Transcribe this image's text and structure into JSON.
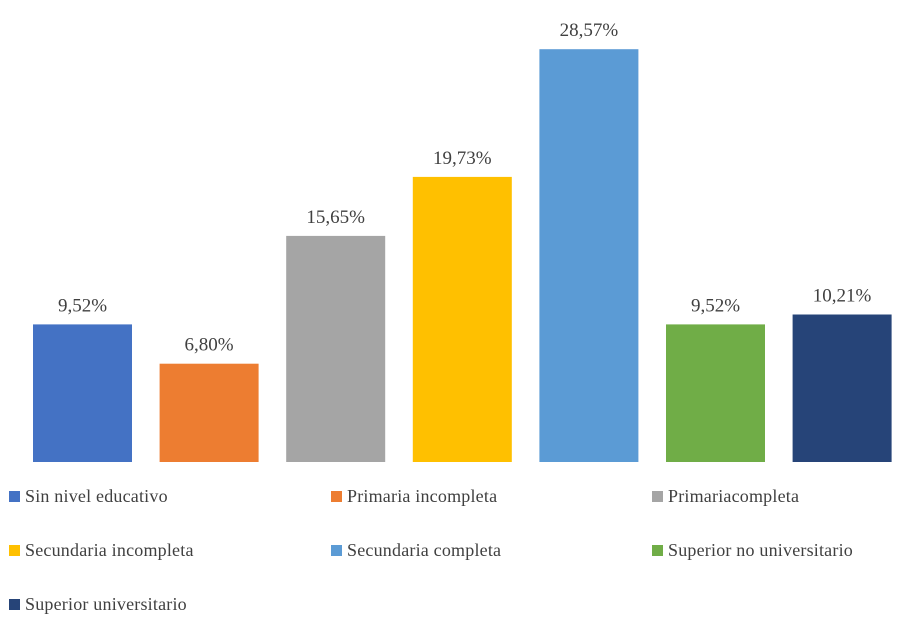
{
  "chart_data": {
    "type": "bar",
    "title": "",
    "xlabel": "",
    "ylabel": "",
    "ylim": [
      0,
      30
    ],
    "grid": false,
    "legend_position": "bottom",
    "categories": [
      "Sin nivel educativo",
      "Primaria incompleta",
      "Primariacompleta",
      "Secundaria incompleta",
      "Secundaria completa",
      "Superior no universitario",
      "Superior universitario"
    ],
    "values": [
      9.52,
      6.8,
      15.65,
      19.73,
      28.57,
      9.52,
      10.21
    ],
    "data_labels": [
      "9,52%",
      "6,80%",
      "15,65%",
      "19,73%",
      "28,57%",
      "9,52%",
      "10,21%"
    ],
    "colors": [
      "#4472c4",
      "#ed7d31",
      "#a5a5a5",
      "#ffc000",
      "#5b9bd5",
      "#70ad47",
      "#264478"
    ]
  }
}
